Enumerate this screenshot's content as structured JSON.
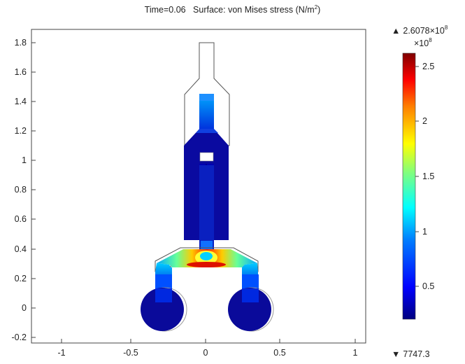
{
  "plot": {
    "time_label": "Time=0.06",
    "surface_label": "Surface: von Mises stress (N/m",
    "unit_sup": "2",
    "unit_close": ")",
    "x_ticks": [
      "-1",
      "-0.5",
      "0",
      "0.5",
      "1"
    ],
    "y_ticks": [
      "1.8",
      "1.6",
      "1.4",
      "1.2",
      "1",
      "0.8",
      "0.6",
      "0.4",
      "0.2",
      "0",
      "-0.2"
    ]
  },
  "colorbar": {
    "max_marker": "▲",
    "max_value": "2.6078×10",
    "max_exp": "8",
    "scale_base": "×10",
    "scale_exp": "8",
    "ticks": [
      "2.5",
      "2",
      "1.5",
      "1",
      "0.5"
    ],
    "min_marker": "▼",
    "min_value": "7747.3",
    "colors": [
      "#00007f",
      "#0000ff",
      "#007fff",
      "#00ffff",
      "#7fff7f",
      "#ffff00",
      "#ff7f00",
      "#ff0000",
      "#7f0000"
    ]
  }
}
